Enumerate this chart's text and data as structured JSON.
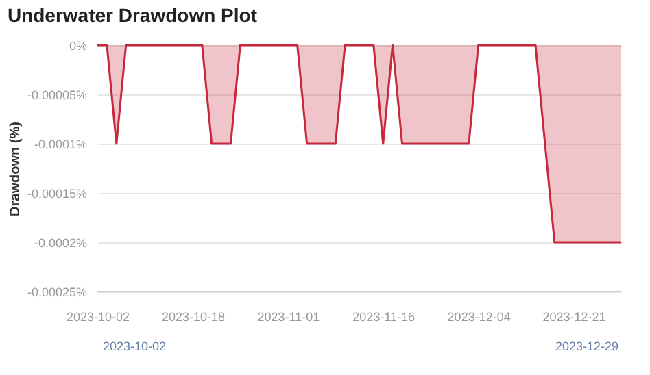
{
  "chart_data": {
    "type": "area",
    "title": "Underwater Drawdown Plot",
    "ylabel": "Drawdown (%)",
    "categories": [
      "2023-10-02",
      null,
      null,
      null,
      null,
      null,
      null,
      null,
      null,
      null,
      "2023-10-18",
      null,
      null,
      null,
      null,
      null,
      null,
      null,
      null,
      null,
      "2023-11-01",
      null,
      null,
      null,
      null,
      null,
      null,
      null,
      null,
      null,
      "2023-11-16",
      null,
      null,
      null,
      null,
      null,
      null,
      null,
      null,
      null,
      "2023-12-04",
      null,
      null,
      null,
      null,
      null,
      null,
      null,
      null,
      null,
      "2023-12-21",
      null,
      null,
      null,
      null,
      null
    ],
    "series": [
      {
        "color": "#c8283c",
        "values": [
          0,
          0,
          -0.0001,
          0,
          0,
          0,
          0,
          0,
          0,
          0,
          0,
          0,
          -0.0001,
          -0.0001,
          -0.0001,
          0,
          0,
          0,
          0,
          0,
          0,
          0,
          -0.0001,
          -0.0001,
          -0.0001,
          -0.0001,
          0,
          0,
          0,
          0,
          -0.0001,
          0,
          -0.0001,
          -0.0001,
          -0.0001,
          -0.0001,
          -0.0001,
          -0.0001,
          -0.0001,
          -0.0001,
          0,
          0,
          0,
          0,
          0,
          0,
          0,
          -0.0001,
          -0.0002,
          -0.0002,
          -0.0002,
          -0.0002,
          -0.0002,
          -0.0002,
          -0.0002,
          -0.0002
        ]
      }
    ],
    "ylim": [
      -0.00025,
      0
    ],
    "yticks": [
      {
        "value": 0,
        "label": "0%"
      },
      {
        "value": -5e-05,
        "label": "-0.00005%"
      },
      {
        "value": -0.0001,
        "label": "-0.0001%"
      },
      {
        "value": -0.00015,
        "label": "-0.00015%"
      },
      {
        "value": -0.0002,
        "label": "-0.0002%"
      },
      {
        "value": -0.00025,
        "label": "-0.00025%"
      }
    ],
    "grid": "y",
    "annotations": [
      "2023-10-02",
      "2023-12-29"
    ]
  }
}
